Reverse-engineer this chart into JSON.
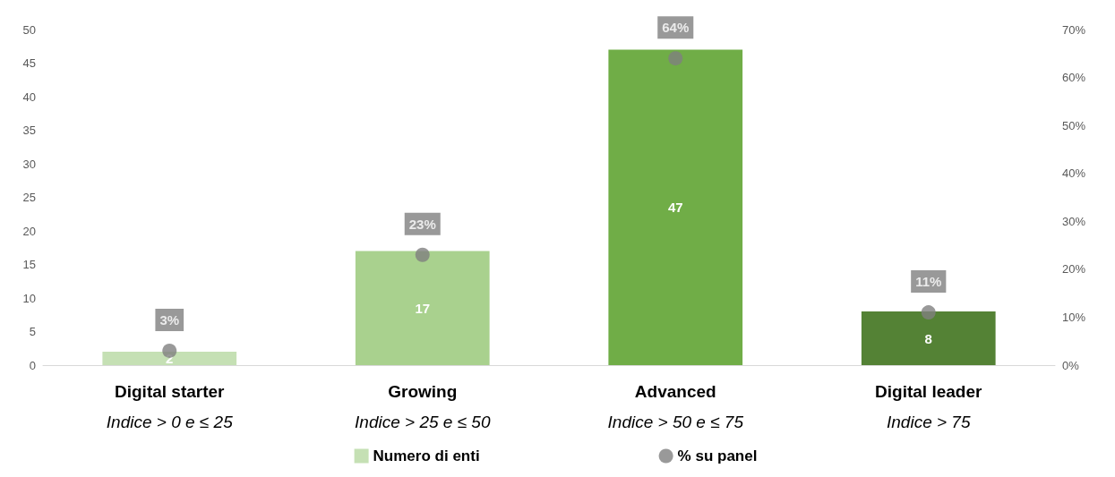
{
  "chart_data": {
    "type": "bar",
    "categories": [
      "Digital starter\nIndice > 0 e ≤ 25",
      "Growing\nIndice > 25 e ≤ 50",
      "Advanced\nIndice > 50 e ≤ 75",
      "Digital leader\nIndice > 75"
    ],
    "series": [
      {
        "name": "Numero di enti",
        "color": "#c5e0b4",
        "colors": [
          "#c5e0b4",
          "#a9d18e",
          "#70ad47",
          "#548235"
        ],
        "values": [
          2,
          17,
          47,
          8
        ]
      },
      {
        "name": "% su panel",
        "type": "scatter",
        "axis": "y2",
        "color": "#808080",
        "values": [
          3,
          23,
          64,
          11
        ],
        "value_labels": [
          "3%",
          "23%",
          "64%",
          "11%"
        ]
      }
    ],
    "ylim": [
      0,
      50
    ],
    "yticks": [
      0,
      5,
      10,
      15,
      20,
      25,
      30,
      35,
      40,
      45,
      50
    ],
    "y2lim": [
      0,
      70
    ],
    "y2ticks": [
      {
        "value": 0,
        "label": "0%"
      },
      {
        "value": 10,
        "label": "10%"
      },
      {
        "value": 20,
        "label": "20%"
      },
      {
        "value": 30,
        "label": "30%"
      },
      {
        "value": 40,
        "label": "40%"
      },
      {
        "value": 50,
        "label": "50%"
      },
      {
        "value": 60,
        "label": "60%"
      },
      {
        "value": 70,
        "label": "70%"
      }
    ],
    "data_labels": true,
    "grid": false,
    "legend": "bottom",
    "marker": "circle"
  }
}
